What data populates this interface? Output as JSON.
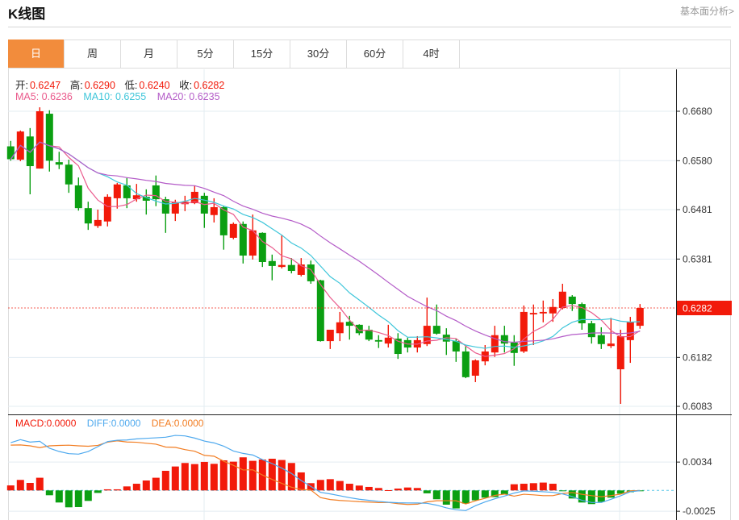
{
  "header": {
    "title": "K线图",
    "link": "基本面分析>"
  },
  "tabs": [
    "日",
    "周",
    "月",
    "5分",
    "15分",
    "30分",
    "60分",
    "4时"
  ],
  "active_tab": 0,
  "ohlc_legend": {
    "open_label": "开:",
    "open": "0.6247",
    "high_label": "高:",
    "high": "0.6290",
    "low_label": "低:",
    "low": "0.6240",
    "close_label": "收:",
    "close": "0.6282"
  },
  "ma_legend": {
    "ma5": "MA5: 0.6236",
    "ma10": "MA10: 0.6255",
    "ma20": "MA20: 0.6235"
  },
  "macd_legend": {
    "macd": "MACD:0.0000",
    "diff": "DIFF:0.0000",
    "dea": "DEA:0.0000"
  },
  "colors": {
    "up": "#f21a0a",
    "down": "#0b9f12",
    "ma5": "#ea5a8c",
    "ma10": "#3fc6da",
    "ma20": "#b45cc8",
    "diff": "#4ea9ee",
    "dea": "#f27d22",
    "accent": "#f28c3c"
  },
  "chart_data": {
    "type": "candlestick",
    "price_ticks": [
      "0.6680",
      "0.6580",
      "0.6481",
      "0.6381",
      "0.6182",
      "0.6083"
    ],
    "last_price": "0.6282",
    "macd_ticks": [
      "0.0034",
      "-0.0025"
    ],
    "ohlc": [
      [
        0.6609,
        0.662,
        0.658,
        0.6583
      ],
      [
        0.6582,
        0.6641,
        0.6579,
        0.6639
      ],
      [
        0.6629,
        0.6646,
        0.6512,
        0.6569
      ],
      [
        0.6564,
        0.6688,
        0.6564,
        0.668
      ],
      [
        0.6675,
        0.6682,
        0.6558,
        0.658
      ],
      [
        0.6577,
        0.6598,
        0.6563,
        0.6572
      ],
      [
        0.6572,
        0.6582,
        0.6515,
        0.6532
      ],
      [
        0.653,
        0.6546,
        0.6479,
        0.6484
      ],
      [
        0.6484,
        0.6497,
        0.644,
        0.6453
      ],
      [
        0.6448,
        0.6481,
        0.6444,
        0.646
      ],
      [
        0.6457,
        0.6512,
        0.6447,
        0.6507
      ],
      [
        0.6504,
        0.6535,
        0.6483,
        0.6532
      ],
      [
        0.653,
        0.6545,
        0.6484,
        0.6504
      ],
      [
        0.6502,
        0.6533,
        0.6497,
        0.651
      ],
      [
        0.6507,
        0.6522,
        0.6471,
        0.6499
      ],
      [
        0.653,
        0.655,
        0.6488,
        0.6502
      ],
      [
        0.6502,
        0.6507,
        0.6434,
        0.6473
      ],
      [
        0.6473,
        0.6501,
        0.6458,
        0.6496
      ],
      [
        0.6492,
        0.6509,
        0.6478,
        0.6497
      ],
      [
        0.6494,
        0.653,
        0.6492,
        0.6517
      ],
      [
        0.6509,
        0.6515,
        0.6444,
        0.6473
      ],
      [
        0.647,
        0.6504,
        0.6455,
        0.6486
      ],
      [
        0.6486,
        0.6489,
        0.64,
        0.6429
      ],
      [
        0.6424,
        0.6455,
        0.6421,
        0.6452
      ],
      [
        0.6452,
        0.6457,
        0.6372,
        0.6388
      ],
      [
        0.6388,
        0.6471,
        0.638,
        0.6439
      ],
      [
        0.6434,
        0.6435,
        0.6365,
        0.6375
      ],
      [
        0.6377,
        0.639,
        0.6338,
        0.6367
      ],
      [
        0.6365,
        0.6429,
        0.6362,
        0.6369
      ],
      [
        0.6369,
        0.6383,
        0.6352,
        0.6357
      ],
      [
        0.6349,
        0.6383,
        0.6346,
        0.637
      ],
      [
        0.637,
        0.6378,
        0.6331,
        0.6336
      ],
      [
        0.6338,
        0.6339,
        0.6214,
        0.6215
      ],
      [
        0.6215,
        0.6238,
        0.6199,
        0.6238
      ],
      [
        0.6231,
        0.6274,
        0.6215,
        0.6253
      ],
      [
        0.6254,
        0.6266,
        0.6218,
        0.6246
      ],
      [
        0.6248,
        0.6249,
        0.6227,
        0.6231
      ],
      [
        0.6238,
        0.6246,
        0.6215,
        0.6218
      ],
      [
        0.6217,
        0.6227,
        0.6201,
        0.6214
      ],
      [
        0.621,
        0.6248,
        0.6202,
        0.6222
      ],
      [
        0.622,
        0.6231,
        0.6179,
        0.6189
      ],
      [
        0.6217,
        0.6222,
        0.6192,
        0.6202
      ],
      [
        0.6202,
        0.6225,
        0.6192,
        0.6217
      ],
      [
        0.6209,
        0.6303,
        0.6205,
        0.6246
      ],
      [
        0.6246,
        0.6289,
        0.6228,
        0.623
      ],
      [
        0.6228,
        0.6241,
        0.6187,
        0.6214
      ],
      [
        0.6215,
        0.622,
        0.6173,
        0.6194
      ],
      [
        0.6194,
        0.6205,
        0.614,
        0.6142
      ],
      [
        0.6145,
        0.6178,
        0.6132,
        0.6176
      ],
      [
        0.6174,
        0.6207,
        0.6166,
        0.6194
      ],
      [
        0.6192,
        0.6246,
        0.6183,
        0.6227
      ],
      [
        0.6227,
        0.6246,
        0.6192,
        0.621
      ],
      [
        0.6212,
        0.6227,
        0.6165,
        0.6191
      ],
      [
        0.6194,
        0.6287,
        0.6191,
        0.6274
      ],
      [
        0.6269,
        0.6289,
        0.6207,
        0.6272
      ],
      [
        0.6271,
        0.6297,
        0.6253,
        0.6274
      ],
      [
        0.6271,
        0.63,
        0.6254,
        0.6284
      ],
      [
        0.6282,
        0.6331,
        0.6279,
        0.6315
      ],
      [
        0.6305,
        0.6308,
        0.6276,
        0.629
      ],
      [
        0.629,
        0.6293,
        0.6238,
        0.6251
      ],
      [
        0.6251,
        0.6256,
        0.621,
        0.6223
      ],
      [
        0.6227,
        0.6243,
        0.6199,
        0.6209
      ],
      [
        0.6205,
        0.6262,
        0.6201,
        0.621
      ],
      [
        0.6158,
        0.6238,
        0.6088,
        0.6225
      ],
      [
        0.6217,
        0.6264,
        0.6171,
        0.6254
      ],
      [
        0.6246,
        0.629,
        0.624,
        0.6282
      ]
    ],
    "macd_hist": [
      0.0006,
      0.00126,
      0.0009,
      0.00152,
      -0.00058,
      -0.00145,
      -0.00203,
      -0.002,
      -0.00126,
      -0.0003,
      0.00013,
      0.00013,
      0.00048,
      0.0008,
      0.00119,
      0.00152,
      0.00235,
      0.00287,
      0.00329,
      0.00316,
      0.00342,
      0.00319,
      0.00361,
      0.00345,
      0.00397,
      0.00355,
      0.00371,
      0.0038,
      0.00365,
      0.00329,
      0.00216,
      0.00087,
      0.00126,
      0.00135,
      0.00113,
      0.0008,
      0.00058,
      0.00042,
      0.00029,
      3e-05,
      0.00022,
      0.00035,
      0.00029,
      -0.00035,
      -0.00106,
      -0.00171,
      -0.00216,
      -0.00158,
      -0.00119,
      -0.00087,
      -0.0008,
      -0.00048,
      0.00074,
      0.0008,
      0.00087,
      0.00094,
      0.0008,
      -0.0001,
      -0.00097,
      -0.00145,
      -0.00164,
      -0.00138,
      -0.00087,
      -0.00039,
      -0.00022,
      -3e-05
    ],
    "diff": [
      0.00573,
      0.00609,
      0.0058,
      0.00589,
      0.00506,
      0.00467,
      0.00441,
      0.00435,
      0.00467,
      0.00525,
      0.00586,
      0.00602,
      0.00605,
      0.00618,
      0.00625,
      0.00631,
      0.00638,
      0.0066,
      0.00654,
      0.00628,
      0.00592,
      0.0057,
      0.00531,
      0.00473,
      0.00444,
      0.00425,
      0.0037,
      0.00322,
      0.00267,
      0.00203,
      0.00119,
      0.00048,
      -0.00023,
      -0.00042,
      -0.00064,
      -0.00087,
      -0.00106,
      -0.00119,
      -0.00132,
      -0.00142,
      -0.00148,
      -0.00151,
      -0.00151,
      -0.00155,
      -0.00177,
      -0.00209,
      -0.00232,
      -0.00242,
      -0.00184,
      -0.00138,
      -0.001,
      -0.00068,
      -0.00032,
      -6e-05,
      -0.0001,
      -0.00016,
      -0.00023,
      -0.00042,
      -0.00074,
      -0.00119,
      -0.00145,
      -0.00145,
      -0.00106,
      -0.00064,
      -0.00016,
      -3e-05
    ]
  }
}
